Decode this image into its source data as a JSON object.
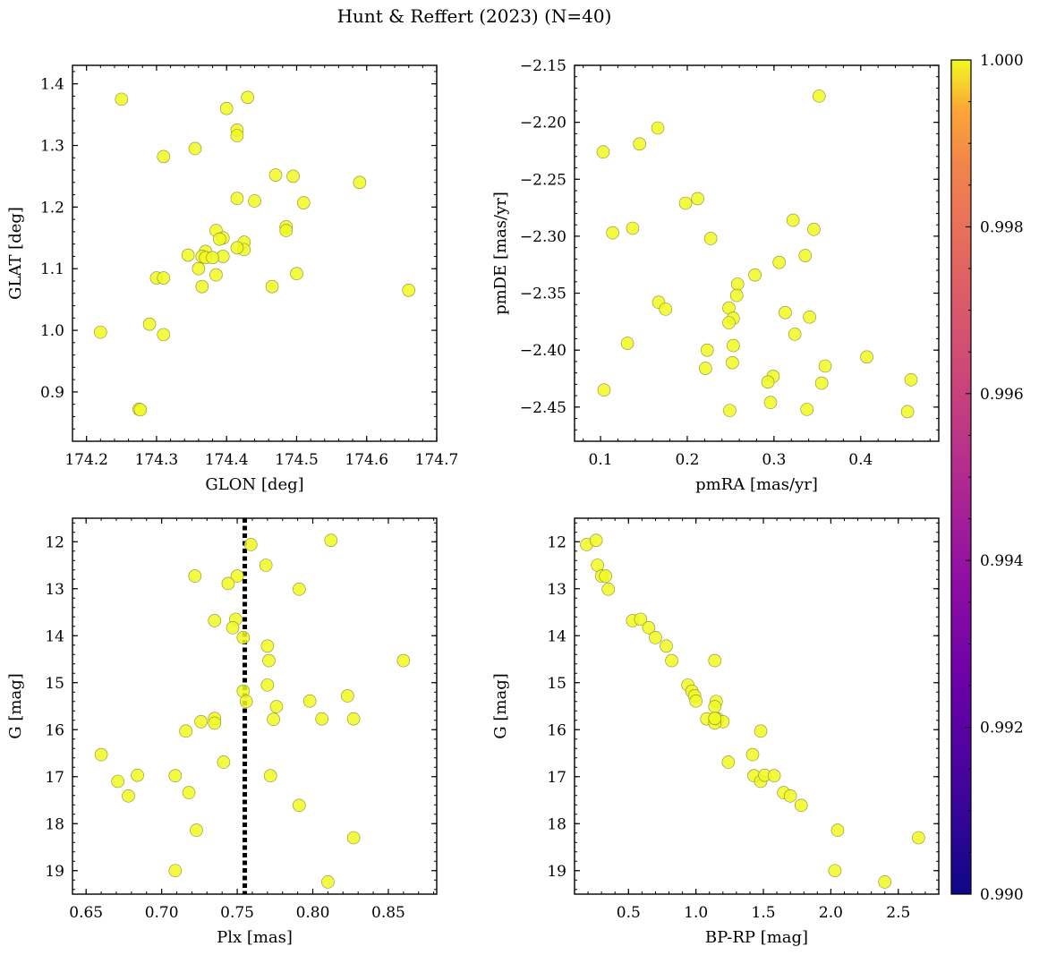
{
  "title": "Hunt & Reffert (2023) (N=40)",
  "colorbar": {
    "cmap": "plasma",
    "min": 0.99,
    "max": 1.0,
    "ticks": [
      "0.990",
      "0.992",
      "0.994",
      "0.996",
      "0.998",
      "1.000"
    ],
    "point_color": "#f0f921"
  },
  "chart_data": [
    {
      "type": "scatter",
      "id": "glon-glat",
      "xlabel": "GLON [deg]",
      "ylabel": "GLAT [deg]",
      "xlim": [
        174.18,
        174.7
      ],
      "ylim": [
        0.82,
        1.43
      ],
      "invert_y": false,
      "xticks": [
        "174.2",
        "174.3",
        "174.4",
        "174.5",
        "174.6",
        "174.7"
      ],
      "yticks": [
        "0.9",
        "1.0",
        "1.1",
        "1.2",
        "1.3",
        "1.4"
      ],
      "x": [
        174.25,
        174.43,
        174.4,
        174.415,
        174.415,
        174.355,
        174.31,
        174.47,
        174.495,
        174.59,
        174.415,
        174.44,
        174.51,
        174.485,
        174.485,
        174.385,
        174.395,
        174.39,
        174.425,
        174.425,
        174.37,
        174.365,
        174.37,
        174.345,
        174.415,
        174.395,
        174.38,
        174.36,
        174.3,
        174.31,
        174.385,
        174.5,
        174.365,
        174.465,
        174.66,
        174.22,
        174.29,
        174.31,
        174.275,
        174.277
      ],
      "y": [
        1.375,
        1.378,
        1.36,
        1.325,
        1.316,
        1.295,
        1.282,
        1.252,
        1.25,
        1.24,
        1.214,
        1.21,
        1.207,
        1.168,
        1.162,
        1.162,
        1.15,
        1.148,
        1.143,
        1.131,
        1.128,
        1.12,
        1.118,
        1.122,
        1.134,
        1.12,
        1.118,
        1.1,
        1.085,
        1.085,
        1.09,
        1.092,
        1.071,
        1.071,
        1.065,
        0.997,
        1.01,
        0.993,
        0.872,
        0.871
      ]
    },
    {
      "type": "scatter",
      "id": "pmra-pmde",
      "xlabel": "pmRA [mas/yr]",
      "ylabel": "pmDE [mas/yr]",
      "xlim": [
        0.07,
        0.49
      ],
      "ylim": [
        -2.48,
        -2.15
      ],
      "invert_y": false,
      "xticks": [
        "0.1",
        "0.2",
        "0.3",
        "0.4"
      ],
      "yticks": [
        "−2.45",
        "−2.40",
        "−2.35",
        "−2.30",
        "−2.25",
        "−2.20",
        "−2.15"
      ],
      "x": [
        0.352,
        0.103,
        0.166,
        0.145,
        0.198,
        0.212,
        0.322,
        0.114,
        0.137,
        0.227,
        0.346,
        0.306,
        0.278,
        0.336,
        0.258,
        0.257,
        0.248,
        0.167,
        0.175,
        0.253,
        0.248,
        0.313,
        0.341,
        0.324,
        0.131,
        0.223,
        0.253,
        0.252,
        0.359,
        0.221,
        0.299,
        0.293,
        0.355,
        0.407,
        0.104,
        0.296,
        0.338,
        0.458,
        0.249,
        0.454
      ],
      "y": [
        -2.177,
        -2.226,
        -2.205,
        -2.219,
        -2.271,
        -2.267,
        -2.286,
        -2.297,
        -2.293,
        -2.302,
        -2.294,
        -2.323,
        -2.334,
        -2.317,
        -2.342,
        -2.352,
        -2.363,
        -2.358,
        -2.364,
        -2.372,
        -2.376,
        -2.367,
        -2.371,
        -2.386,
        -2.394,
        -2.4,
        -2.396,
        -2.411,
        -2.414,
        -2.416,
        -2.423,
        -2.428,
        -2.429,
        -2.406,
        -2.435,
        -2.446,
        -2.452,
        -2.426,
        -2.453,
        -2.454
      ]
    },
    {
      "type": "scatter",
      "id": "plx-g",
      "xlabel": "Plx [mas]",
      "ylabel": "G [mag]",
      "xlim": [
        0.641,
        0.882
      ],
      "ylim": [
        11.5,
        19.5
      ],
      "invert_y": true,
      "xticks": [
        "0.65",
        "0.70",
        "0.75",
        "0.80",
        "0.85"
      ],
      "yticks": [
        "12",
        "13",
        "14",
        "15",
        "16",
        "17",
        "18",
        "19"
      ],
      "vline": {
        "x": 0.755,
        "style": "dotted"
      },
      "x": [
        0.812,
        0.759,
        0.769,
        0.722,
        0.75,
        0.744,
        0.791,
        0.735,
        0.749,
        0.747,
        0.754,
        0.77,
        0.771,
        0.86,
        0.77,
        0.754,
        0.756,
        0.776,
        0.798,
        0.823,
        0.774,
        0.806,
        0.827,
        0.726,
        0.735,
        0.735,
        0.716,
        0.741,
        0.66,
        0.671,
        0.684,
        0.709,
        0.772,
        0.678,
        0.718,
        0.791,
        0.723,
        0.827,
        0.709,
        0.81
      ],
      "y": [
        11.97,
        12.06,
        12.5,
        12.73,
        12.73,
        12.89,
        13.01,
        13.68,
        13.65,
        13.83,
        14.04,
        14.22,
        14.53,
        14.53,
        15.05,
        15.18,
        15.4,
        15.51,
        15.39,
        15.28,
        15.78,
        15.77,
        15.77,
        15.83,
        15.76,
        15.86,
        16.03,
        16.69,
        16.53,
        17.1,
        16.97,
        16.98,
        16.98,
        17.41,
        17.34,
        17.61,
        18.14,
        18.3,
        19.0,
        19.24
      ]
    },
    {
      "type": "scatter",
      "id": "bprp-g",
      "xlabel": "BP-RP [mag]",
      "ylabel": "G [mag]",
      "xlim": [
        0.1,
        2.8
      ],
      "ylim": [
        11.5,
        19.5
      ],
      "invert_y": true,
      "xticks": [
        "0.5",
        "1.0",
        "1.5",
        "2.0",
        "2.5"
      ],
      "yticks": [
        "12",
        "13",
        "14",
        "15",
        "16",
        "17",
        "18",
        "19"
      ],
      "x": [
        0.19,
        0.26,
        0.27,
        0.3,
        0.33,
        0.35,
        0.53,
        0.59,
        0.65,
        0.7,
        0.78,
        0.82,
        0.94,
        0.97,
        0.99,
        1.0,
        1.14,
        1.15,
        1.14,
        1.16,
        1.08,
        1.16,
        1.2,
        1.14,
        1.14,
        1.48,
        1.24,
        1.42,
        1.43,
        1.48,
        1.51,
        1.58,
        1.65,
        1.7,
        1.78,
        2.05,
        2.03,
        2.65,
        1.14,
        2.4
      ],
      "y": [
        12.06,
        11.97,
        12.5,
        12.73,
        12.73,
        13.01,
        13.68,
        13.65,
        13.83,
        14.04,
        14.22,
        14.53,
        15.05,
        15.18,
        15.28,
        15.39,
        14.53,
        15.4,
        15.51,
        15.78,
        15.77,
        15.77,
        15.83,
        15.86,
        15.76,
        16.03,
        16.69,
        16.53,
        16.98,
        17.1,
        16.97,
        16.98,
        17.34,
        17.41,
        17.61,
        18.14,
        19.0,
        18.3,
        15.76,
        19.24
      ]
    }
  ]
}
